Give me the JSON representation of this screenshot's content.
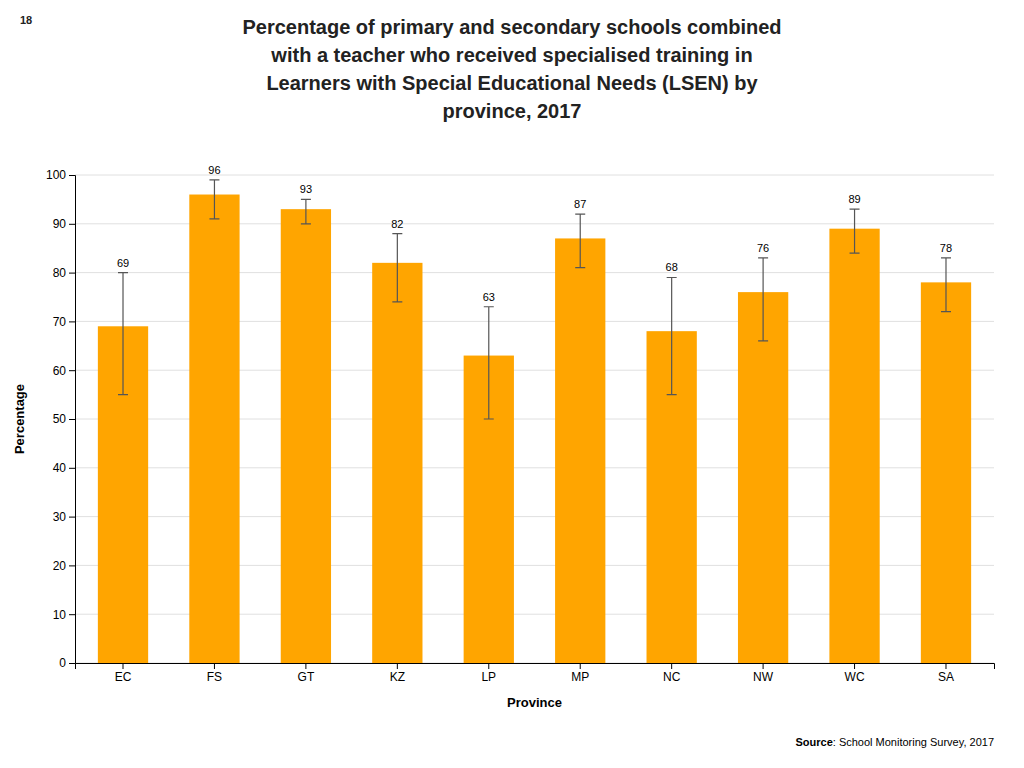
{
  "chart_data": {
    "type": "bar",
    "title": "Percentage of primary and secondary schools combined\nwith a teacher who received specialised training in\nLearners with Special Educational Needs (LSEN) by\nprovince, 2017",
    "annotations": [
      "18",
      "Source",
      ": School Monitoring Survey, 2017"
    ],
    "x_label": "Province",
    "y_label": "Percentage",
    "categories": [
      "EC",
      "FS",
      "GT",
      "KZ",
      "LP",
      "MP",
      "NC",
      "NW",
      "WC",
      "SA"
    ],
    "values": [
      69,
      96,
      93,
      82,
      63,
      87,
      68,
      76,
      89,
      78
    ],
    "errors_lower": [
      14,
      5,
      3,
      8,
      13,
      6,
      13,
      10,
      5,
      6
    ],
    "errors_upper": [
      11,
      3,
      2,
      6,
      10,
      5,
      11,
      7,
      4,
      5
    ],
    "color": "#FFA500",
    "ylim": [
      0,
      100
    ],
    "yticks": [
      0,
      10,
      20,
      30,
      40,
      50,
      60,
      70,
      80,
      90,
      100
    ],
    "grid": true,
    "data_labels": true
  }
}
